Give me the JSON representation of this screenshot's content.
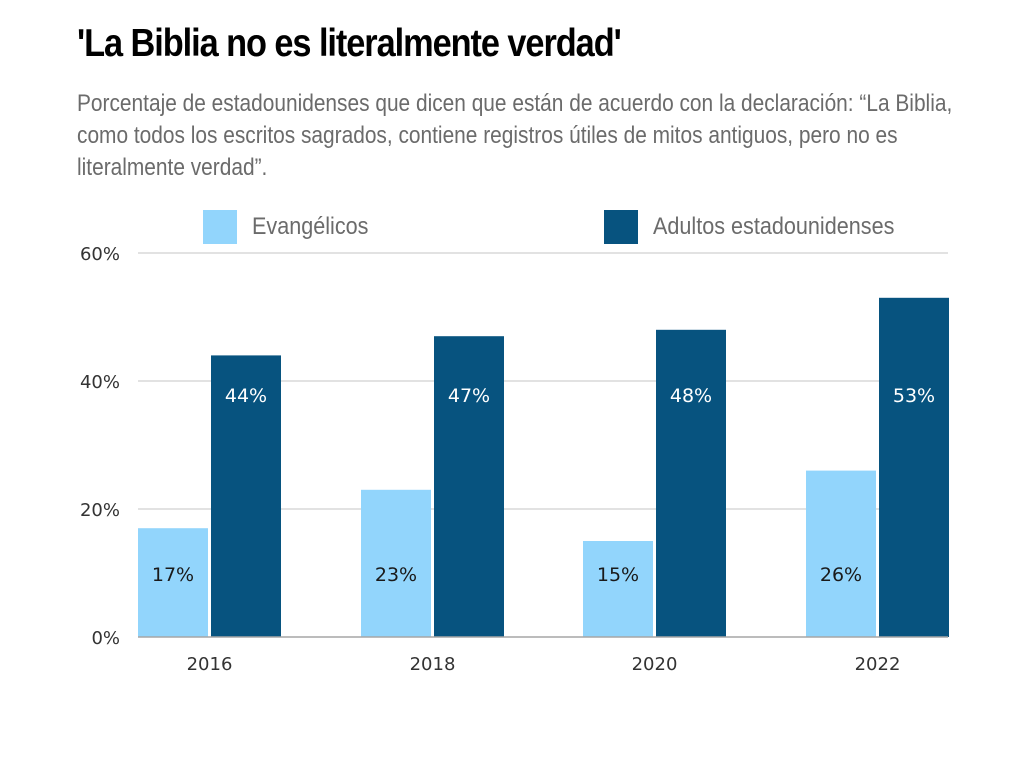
{
  "chart_data": {
    "type": "bar",
    "title": "'La Biblia no es literalmente verdad'",
    "subtitle": "Porcentaje de estadounidenses que dicen que están de acuerdo con la declaración: “La Biblia, como todos los escritos sagrados, contiene registros útiles de mitos antiguos, pero no es literalmente verdad”.",
    "categories": [
      "2016",
      "2018",
      "2020",
      "2022"
    ],
    "series": [
      {
        "name": "Evangélicos",
        "color": "#92d5fc",
        "label_color": "#1a1a1a",
        "values": [
          17,
          23,
          15,
          26
        ],
        "labels": [
          "17%",
          "23%",
          "15%",
          "26%"
        ]
      },
      {
        "name": "Adultos estadounidenses",
        "color": "#07537f",
        "label_color": "#ffffff",
        "values": [
          44,
          47,
          48,
          53
        ],
        "labels": [
          "44%",
          "47%",
          "48%",
          "53%"
        ]
      }
    ],
    "xlabel": "",
    "ylabel": "",
    "ylim": [
      0,
      60
    ],
    "yticks": [
      0,
      20,
      40,
      60
    ],
    "ytick_labels": [
      "0%",
      "20%",
      "40%",
      "60%"
    ],
    "grid": true,
    "legend_position": "top"
  }
}
